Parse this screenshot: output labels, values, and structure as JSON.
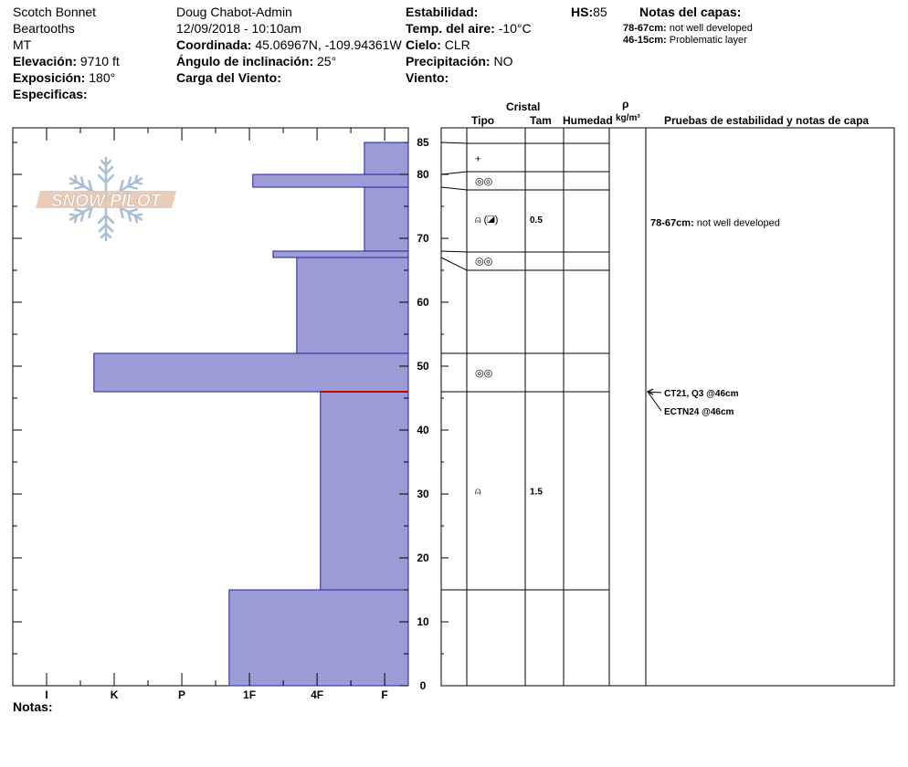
{
  "header": {
    "location": [
      "Scotch Bonnet",
      "Beartooths",
      "MT"
    ],
    "elevation_label": "Elevación:",
    "elevation_value": "9710 ft",
    "aspect_label": "Exposición:",
    "aspect_value": "180°",
    "specifics_label": "Especificas:",
    "observer": "Doug Chabot-Admin",
    "datetime": "12/09/2018 - 10:10am",
    "coord_label": "Coordinada:",
    "coord_value": "45.06967N, -109.94361W",
    "slope_label": "Ángulo de inclinación:",
    "slope_value": "25°",
    "wind_load_label": "Carga del Viento:",
    "stability_label": "Estabilidad:",
    "air_temp_label": "Temp. del aire:",
    "air_temp_value": "-10°C",
    "sky_label": "Cielo:",
    "sky_value": "CLR",
    "precip_label": "Precipitación:",
    "precip_value": "NO",
    "wind_label": "Viento:",
    "hs_label": "HS:",
    "hs_value": "85",
    "layer_notes_title": "Notas del capas:",
    "layer_notes": [
      {
        "range": "78-67cm:",
        "text": "not well developed"
      },
      {
        "range": "46-15cm:",
        "text": "Problematic layer"
      }
    ]
  },
  "logo": {
    "text": "SNOW PILOT"
  },
  "table_headers": {
    "cristal": "Cristal",
    "tipo": "Tipo",
    "tam": "Tam",
    "humedad": "Humedad",
    "rho": "ρ",
    "density_unit": "kg/m³",
    "tests": "Pruebas de estabilidad y notas de capa"
  },
  "notes_label": "Notas:",
  "chart_data": {
    "type": "bar",
    "orientation": "horizontal",
    "ylim": [
      0,
      85
    ],
    "yticks": [
      0,
      10,
      20,
      30,
      40,
      50,
      60,
      70,
      80,
      85
    ],
    "hardness_scale": [
      "I",
      "K",
      "P",
      "1F",
      "4F",
      "F"
    ],
    "hardness_ticks": [
      {
        "label": "I",
        "pos": 5
      },
      {
        "label": "K",
        "pos": 4
      },
      {
        "label": "P",
        "pos": 3
      },
      {
        "label": "1F",
        "pos": 2
      },
      {
        "label": "4F",
        "pos": 1
      },
      {
        "label": "F",
        "pos": 0
      }
    ],
    "layers": [
      {
        "top": 85,
        "bottom": 80,
        "hardness": "F",
        "hardness_value": 0.65
      },
      {
        "top": 80,
        "bottom": 78,
        "hardness": "1F+",
        "hardness_value": 2.3
      },
      {
        "top": 78,
        "bottom": 68,
        "hardness": "F",
        "hardness_value": 0.65
      },
      {
        "top": 68,
        "bottom": 67,
        "hardness": "1F",
        "hardness_value": 2.0
      },
      {
        "top": 67,
        "bottom": 52,
        "hardness": "4F",
        "hardness_value": 1.65
      },
      {
        "top": 52,
        "bottom": 46,
        "hardness": "K",
        "hardness_value": 4.65
      },
      {
        "top": 46,
        "bottom": 15,
        "hardness": "4F-",
        "hardness_value": 1.3
      },
      {
        "top": 15,
        "bottom": 0,
        "hardness": "1F",
        "hardness_value": 2.65
      }
    ],
    "layer_boundaries": [
      85,
      80,
      78,
      68,
      67,
      52,
      46,
      15,
      0
    ],
    "weak_layer": 46,
    "colors": {
      "bar": "#9b9bd6",
      "bar_edge": "#2020a0",
      "weak_line": "#cc0000"
    },
    "grains": [
      {
        "depth": 82.5,
        "symbol": "+",
        "size": ""
      },
      {
        "depth": 79,
        "symbol": "◎◎",
        "size": ""
      },
      {
        "depth": 73,
        "symbol": "⍝ (◪)",
        "size": "0.5"
      },
      {
        "depth": 66.5,
        "symbol": "◎◎",
        "size": ""
      },
      {
        "depth": 49,
        "symbol": "◎◎",
        "size": ""
      },
      {
        "depth": 30.5,
        "symbol": "⍝",
        "size": "1.5"
      }
    ],
    "layer_comments": [
      {
        "depth": 72.5,
        "range": "78-67cm:",
        "text": "not well developed"
      }
    ],
    "stability_tests": [
      {
        "label": "CT21, Q3 @46cm",
        "depth": 46
      },
      {
        "label": "ECTN24 @46cm",
        "depth": 46
      }
    ]
  }
}
